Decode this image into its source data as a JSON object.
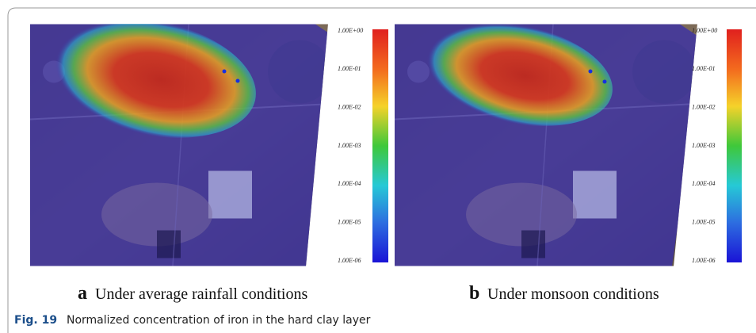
{
  "figure": {
    "panels": [
      {
        "label": "a",
        "caption": "Under average rainfall conditions",
        "colorbar_ticks": [
          "1.00E+00",
          "1.00E-01",
          "1.00E-02",
          "1.00E-03",
          "1.00E-04",
          "1.00E-05",
          "1.00E-06"
        ]
      },
      {
        "label": "b",
        "caption": "Under monsoon conditions",
        "colorbar_ticks": [
          "1.00E+00",
          "1.00E-01",
          "1.00E-02",
          "1.00E-03",
          "1.00E-04",
          "1.00E-05",
          "1.00E-06"
        ]
      }
    ],
    "caption": {
      "label": "Fig. 19",
      "text": "Normalized concentration of iron in the hard clay layer"
    }
  }
}
